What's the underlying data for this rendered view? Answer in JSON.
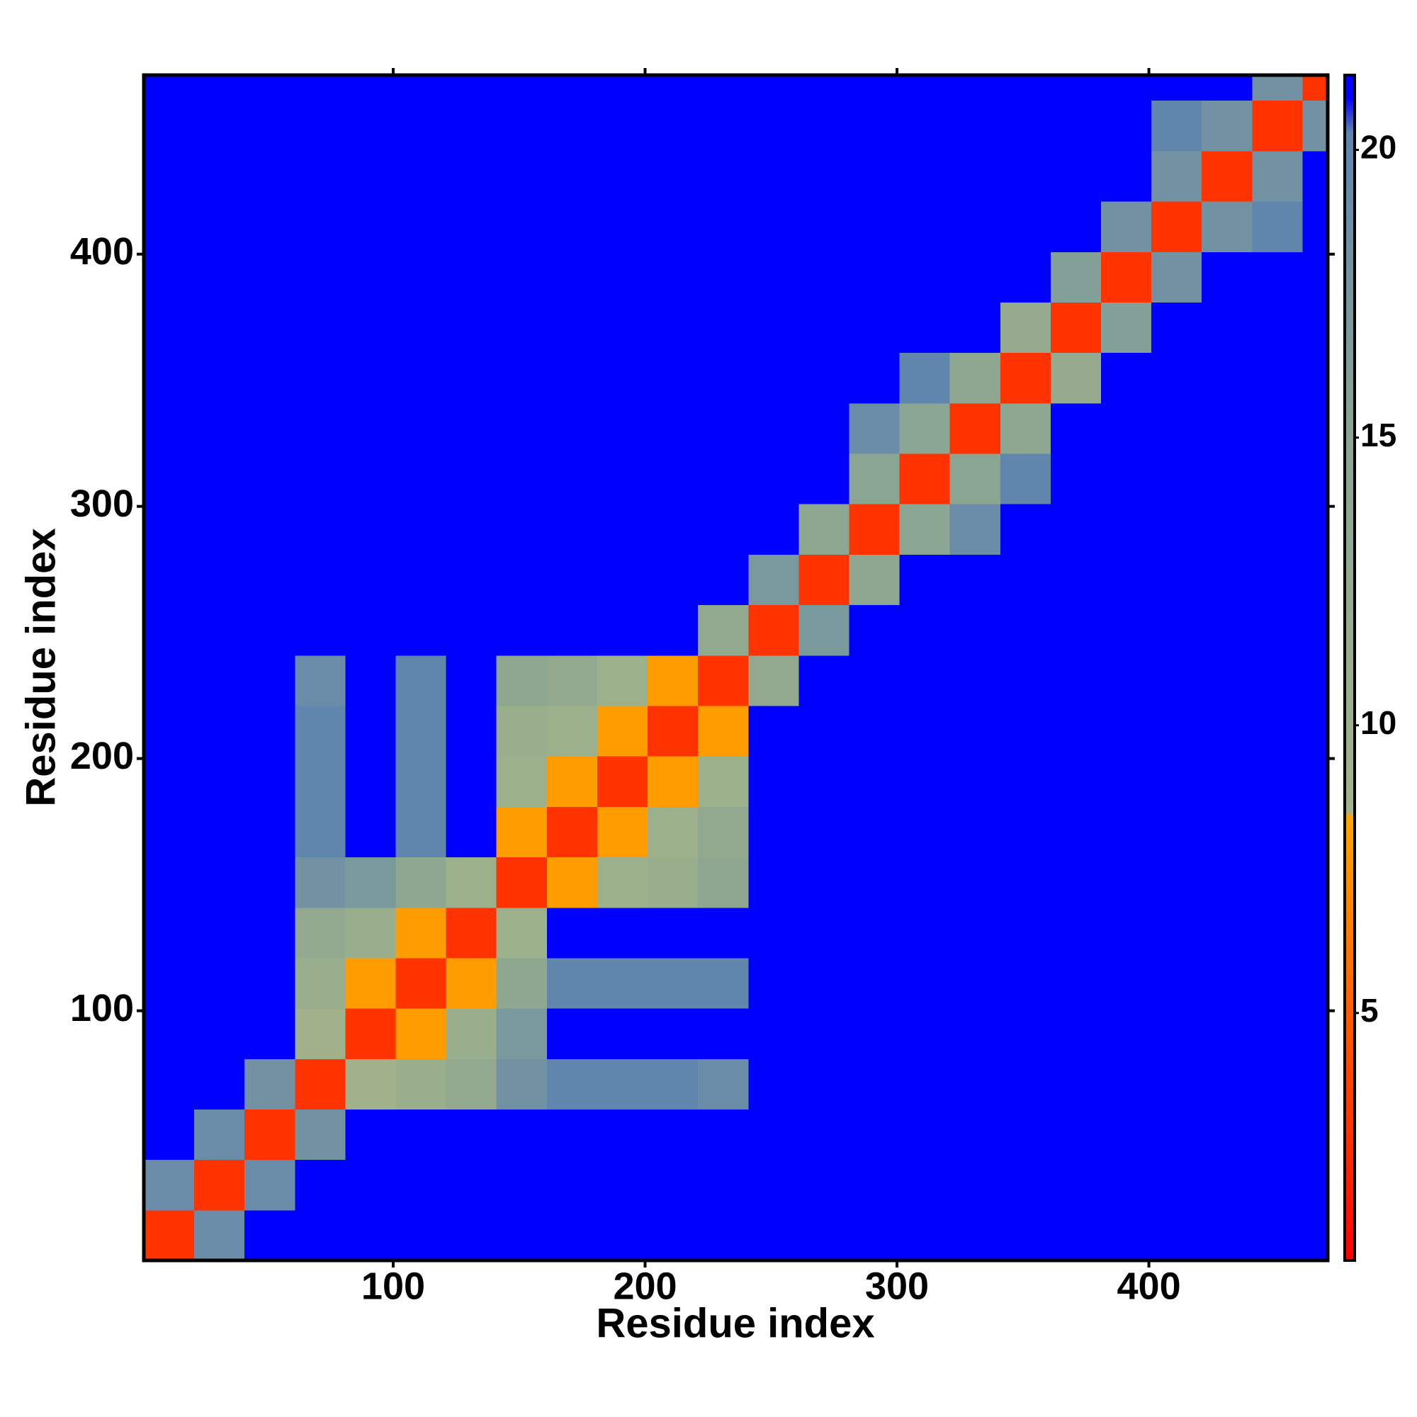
{
  "chart_data": {
    "type": "heatmap",
    "xlabel": "Residue index",
    "ylabel": "Residue index",
    "xlim": [
      1,
      471
    ],
    "ylim": [
      1,
      471
    ],
    "xticks": [
      100,
      200,
      300,
      400
    ],
    "yticks": [
      100,
      200,
      300,
      400
    ],
    "xbins": [
      1,
      21,
      41,
      61,
      81,
      101,
      121,
      141,
      161,
      181,
      201,
      221,
      241,
      261,
      281,
      301,
      321,
      341,
      361,
      381,
      401,
      421,
      441,
      461,
      471
    ],
    "ybins": [
      1,
      21,
      41,
      61,
      81,
      101,
      121,
      141,
      161,
      181,
      201,
      221,
      241,
      261,
      281,
      301,
      321,
      341,
      361,
      381,
      401,
      421,
      441,
      461,
      471
    ],
    "values": [
      [
        3,
        19,
        21,
        21,
        21,
        21,
        21,
        21,
        21,
        21,
        21,
        21,
        21,
        21,
        21,
        21,
        21,
        21,
        21,
        21,
        21,
        21,
        21,
        21
      ],
      [
        19,
        3,
        19,
        21,
        21,
        21,
        21,
        21,
        21,
        21,
        21,
        21,
        21,
        21,
        21,
        21,
        21,
        21,
        21,
        21,
        21,
        21,
        21,
        21
      ],
      [
        21,
        19,
        3,
        18,
        21,
        21,
        21,
        21,
        21,
        21,
        21,
        21,
        21,
        21,
        21,
        21,
        21,
        21,
        21,
        21,
        21,
        21,
        21,
        21
      ],
      [
        21,
        21,
        18,
        3,
        9,
        11,
        13,
        18,
        20,
        20,
        20,
        19,
        21,
        21,
        21,
        21,
        21,
        21,
        21,
        21,
        21,
        21,
        21,
        21
      ],
      [
        21,
        21,
        21,
        9,
        3,
        8,
        11,
        17,
        21,
        21,
        21,
        21,
        21,
        21,
        21,
        21,
        21,
        21,
        21,
        21,
        21,
        21,
        21,
        21
      ],
      [
        21,
        21,
        21,
        11,
        8,
        3,
        8,
        14,
        20,
        20,
        20,
        20,
        21,
        21,
        21,
        21,
        21,
        21,
        21,
        21,
        21,
        21,
        21,
        21
      ],
      [
        21,
        21,
        21,
        13,
        11,
        8,
        3,
        10,
        21,
        21,
        21,
        21,
        21,
        21,
        21,
        21,
        21,
        21,
        21,
        21,
        21,
        21,
        21,
        21
      ],
      [
        21,
        21,
        21,
        18,
        17,
        14,
        10,
        3,
        8,
        10,
        11,
        14,
        21,
        21,
        21,
        21,
        21,
        21,
        21,
        21,
        21,
        21,
        21,
        21
      ],
      [
        21,
        21,
        21,
        20,
        21,
        20,
        21,
        8,
        3,
        8,
        10,
        13,
        21,
        21,
        21,
        21,
        21,
        21,
        21,
        21,
        21,
        21,
        21,
        21
      ],
      [
        21,
        21,
        21,
        20,
        21,
        20,
        21,
        10,
        8,
        3,
        8,
        10,
        21,
        21,
        21,
        21,
        21,
        21,
        21,
        21,
        21,
        21,
        21,
        21
      ],
      [
        21,
        21,
        21,
        20,
        21,
        20,
        21,
        11,
        10,
        8,
        3,
        8,
        21,
        21,
        21,
        21,
        21,
        21,
        21,
        21,
        21,
        21,
        21,
        21
      ],
      [
        21,
        21,
        21,
        19,
        21,
        20,
        21,
        14,
        13,
        10,
        8,
        3,
        13,
        21,
        21,
        21,
        21,
        21,
        21,
        21,
        21,
        21,
        21,
        21
      ],
      [
        21,
        21,
        21,
        21,
        21,
        21,
        21,
        21,
        21,
        21,
        21,
        13,
        3,
        17,
        21,
        21,
        21,
        21,
        21,
        21,
        21,
        21,
        21,
        21
      ],
      [
        21,
        21,
        21,
        21,
        21,
        21,
        21,
        21,
        21,
        21,
        21,
        21,
        17,
        3,
        14,
        21,
        21,
        21,
        21,
        21,
        21,
        21,
        21,
        21
      ],
      [
        21,
        21,
        21,
        21,
        21,
        21,
        21,
        21,
        21,
        21,
        21,
        21,
        21,
        14,
        3,
        15,
        19,
        21,
        21,
        21,
        21,
        21,
        21,
        21
      ],
      [
        21,
        21,
        21,
        21,
        21,
        21,
        21,
        21,
        21,
        21,
        21,
        21,
        21,
        21,
        15,
        3,
        15,
        20,
        21,
        21,
        21,
        21,
        21,
        21
      ],
      [
        21,
        21,
        21,
        21,
        21,
        21,
        21,
        21,
        21,
        21,
        21,
        21,
        21,
        21,
        19,
        15,
        3,
        14,
        21,
        21,
        21,
        21,
        21,
        21
      ],
      [
        21,
        21,
        21,
        21,
        21,
        21,
        21,
        21,
        21,
        21,
        21,
        21,
        21,
        21,
        21,
        20,
        14,
        3,
        12,
        21,
        21,
        21,
        21,
        21
      ],
      [
        21,
        21,
        21,
        21,
        21,
        21,
        21,
        21,
        21,
        21,
        21,
        21,
        21,
        21,
        21,
        21,
        21,
        12,
        3,
        16,
        21,
        21,
        21,
        21
      ],
      [
        21,
        21,
        21,
        21,
        21,
        21,
        21,
        21,
        21,
        21,
        21,
        21,
        21,
        21,
        21,
        21,
        21,
        21,
        16,
        3,
        18,
        21,
        21,
        21
      ],
      [
        21,
        21,
        21,
        21,
        21,
        21,
        21,
        21,
        21,
        21,
        21,
        21,
        21,
        21,
        21,
        21,
        21,
        21,
        21,
        18,
        3,
        18,
        20,
        21
      ],
      [
        21,
        21,
        21,
        21,
        21,
        21,
        21,
        21,
        21,
        21,
        21,
        21,
        21,
        21,
        21,
        21,
        21,
        21,
        21,
        21,
        18,
        3,
        18,
        21
      ],
      [
        21,
        21,
        21,
        21,
        21,
        21,
        21,
        21,
        21,
        21,
        21,
        21,
        21,
        21,
        21,
        21,
        21,
        21,
        21,
        21,
        20,
        18,
        3,
        18
      ],
      [
        21,
        21,
        21,
        21,
        21,
        21,
        21,
        21,
        21,
        21,
        21,
        21,
        21,
        21,
        21,
        21,
        21,
        21,
        21,
        21,
        21,
        21,
        18,
        3
      ]
    ],
    "clim": [
      0.7,
      21.3
    ],
    "cticks": [
      5,
      10,
      15,
      20
    ],
    "colorscale": [
      [
        0.7,
        "#ff0000"
      ],
      [
        3,
        "#ff3300"
      ],
      [
        8.4,
        "#ffa500"
      ],
      [
        8.5,
        "#a3b38a"
      ],
      [
        15,
        "#8aa592"
      ],
      [
        20.3,
        "#5f84b0"
      ],
      [
        20.9,
        "#0000ff"
      ],
      [
        21.3,
        "#0000ff"
      ]
    ]
  }
}
